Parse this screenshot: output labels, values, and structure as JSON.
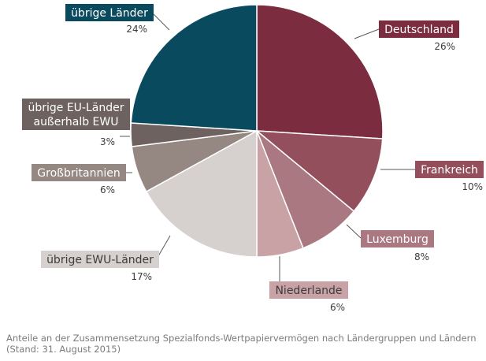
{
  "chart_data": {
    "type": "pie",
    "categories": [
      "Deutschland",
      "Frankreich",
      "Luxemburg",
      "Niederlande",
      "übrige EWU-Länder",
      "Großbritannien",
      "übrige EU-Länder außerhalb EWU",
      "übrige Länder"
    ],
    "values": [
      26,
      10,
      8,
      6,
      17,
      6,
      3,
      24
    ],
    "value_labels": [
      "26%",
      "10%",
      "8%",
      "6%",
      "17%",
      "6%",
      "3%",
      "24%"
    ],
    "label_lines": [
      [
        "Deutschland"
      ],
      [
        "Frankreich"
      ],
      [
        "Luxemburg"
      ],
      [
        "Niederlande"
      ],
      [
        "übrige EWU-Länder"
      ],
      [
        "Großbritannien"
      ],
      [
        "übrige EU-Länder",
        "außerhalb EWU"
      ],
      [
        "übrige Länder"
      ]
    ],
    "colors": [
      "#7b2c3e",
      "#944f5c",
      "#a97880",
      "#c9a2a5",
      "#d6d1ce",
      "#958781",
      "#6d625f",
      "#0a4a5f"
    ],
    "label_text_colors": [
      "#ffffff",
      "#ffffff",
      "#ffffff",
      "#3c3c3c",
      "#3c3c3c",
      "#ffffff",
      "#ffffff",
      "#ffffff"
    ],
    "title": "",
    "legend": "none",
    "start_angle_deg": 0,
    "direction": "clockwise"
  },
  "caption": {
    "line1": "Anteile an der Zusammensetzung Spezialfonds-Wertpapiervermögen nach Ländergruppen und Ländern",
    "line2": "(Stand: 31. August 2015)"
  }
}
